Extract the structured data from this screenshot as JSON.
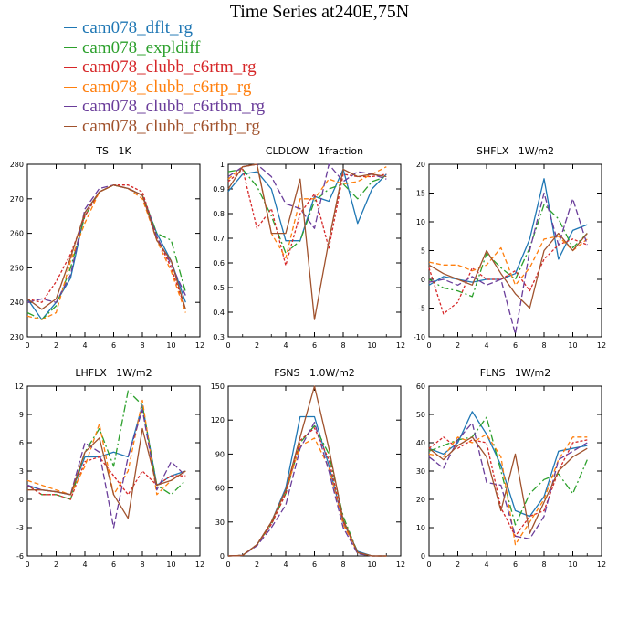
{
  "title": "Time Series at240E,75N",
  "legend": [
    {
      "label": "cam078_dflt_rg",
      "color": "#1f77b4",
      "dash": "none"
    },
    {
      "label": "cam078_expldiff",
      "color": "#2ca02c",
      "dash": "8,3,2,3"
    },
    {
      "label": "cam078_clubb_c6rtm_rg",
      "color": "#d62728",
      "dash": "3,2"
    },
    {
      "label": "cam078_clubb_c6rtp_rg",
      "color": "#ff7f0e",
      "dash": "5,3"
    },
    {
      "label": "cam078_clubb_c6rtbm_rg",
      "color": "#6a3d9a",
      "dash": "7,3"
    },
    {
      "label": "cam078_clubb_c6rtbp_rg",
      "color": "#a0522d",
      "dash": "none"
    }
  ],
  "chart_data": [
    {
      "type": "line",
      "title": "TS   1K",
      "xlim": [
        0,
        12
      ],
      "xticks": [
        0,
        2,
        4,
        6,
        8,
        10,
        12
      ],
      "ylim": [
        230,
        280
      ],
      "yticks": [
        230,
        240,
        250,
        260,
        270,
        280
      ],
      "x": [
        0,
        1,
        2,
        3,
        4,
        5,
        6,
        7,
        8,
        9,
        10,
        11
      ],
      "series": [
        {
          "name": "cam078_dflt_rg",
          "values": [
            241,
            235,
            240,
            247,
            266,
            272,
            274,
            273,
            271,
            260,
            252,
            240
          ]
        },
        {
          "name": "cam078_expldiff",
          "values": [
            237,
            235,
            239,
            250,
            265,
            272,
            274,
            273,
            271,
            260,
            258,
            243
          ]
        },
        {
          "name": "cam078_clubb_c6rtm_rg",
          "values": [
            241,
            240,
            246,
            254,
            265,
            272,
            274,
            274,
            272,
            259,
            250,
            238
          ]
        },
        {
          "name": "cam078_clubb_c6rtp_rg",
          "values": [
            236,
            235,
            237,
            252,
            263,
            272,
            274,
            273,
            270,
            258,
            249,
            237
          ]
        },
        {
          "name": "cam078_clubb_c6rtbm_rg",
          "values": [
            240,
            241,
            240,
            248,
            267,
            273,
            274,
            273,
            271,
            259,
            251,
            242
          ]
        },
        {
          "name": "cam078_clubb_c6rtbp_rg",
          "values": [
            241,
            238,
            241,
            253,
            266,
            272,
            274,
            273,
            271,
            258,
            252,
            238
          ]
        }
      ]
    },
    {
      "type": "line",
      "title": "CLDLOW   1fraction",
      "xlim": [
        0,
        12
      ],
      "xticks": [
        0,
        2,
        4,
        6,
        8,
        10,
        12
      ],
      "ylim": [
        0.3,
        1.0
      ],
      "yticks": [
        0.3,
        0.4,
        0.5,
        0.6,
        0.7,
        0.8,
        0.9,
        1.0
      ],
      "x": [
        0,
        1,
        2,
        3,
        4,
        5,
        6,
        7,
        8,
        9,
        10,
        11
      ],
      "series": [
        {
          "name": "cam078_dflt_rg",
          "values": [
            0.89,
            0.96,
            0.97,
            0.9,
            0.69,
            0.69,
            0.87,
            0.85,
            0.98,
            0.76,
            0.9,
            0.96
          ]
        },
        {
          "name": "cam078_expldiff",
          "values": [
            0.97,
            0.98,
            0.91,
            0.79,
            0.64,
            0.69,
            0.85,
            0.9,
            0.92,
            0.86,
            0.93,
            0.95
          ]
        },
        {
          "name": "cam078_clubb_c6rtm_rg",
          "values": [
            0.93,
            0.98,
            0.74,
            0.82,
            0.59,
            0.8,
            0.88,
            0.66,
            0.96,
            0.95,
            0.95,
            0.96
          ]
        },
        {
          "name": "cam078_clubb_c6rtp_rg",
          "values": [
            0.94,
            0.99,
            1.0,
            0.72,
            0.62,
            0.86,
            0.86,
            0.94,
            0.92,
            0.93,
            0.96,
            0.99
          ]
        },
        {
          "name": "cam078_clubb_c6rtbm_rg",
          "values": [
            0.95,
            0.99,
            1.0,
            0.95,
            0.84,
            0.82,
            0.74,
            1.0,
            0.93,
            0.97,
            0.96,
            0.94
          ]
        },
        {
          "name": "cam078_clubb_c6rtbp_rg",
          "values": [
            0.9,
            0.99,
            1.0,
            0.72,
            0.72,
            0.94,
            0.37,
            0.69,
            0.98,
            0.95,
            0.96,
            0.95
          ]
        }
      ]
    },
    {
      "type": "line",
      "title": "SHFLX   1W/m2",
      "xlim": [
        0,
        12
      ],
      "xticks": [
        0,
        2,
        4,
        6,
        8,
        10,
        12
      ],
      "ylim": [
        -10,
        20
      ],
      "yticks": [
        -10,
        -5,
        0,
        5,
        10,
        15,
        20
      ],
      "x": [
        0,
        1,
        2,
        3,
        4,
        5,
        6,
        7,
        8,
        9,
        10,
        11
      ],
      "series": [
        {
          "name": "cam078_dflt_rg",
          "values": [
            -1,
            0.5,
            0,
            -0.5,
            0,
            0,
            1,
            7,
            17.5,
            3.5,
            8.5,
            9.5
          ]
        },
        {
          "name": "cam078_expldiff",
          "values": [
            0,
            -1.5,
            -2,
            -3,
            4.5,
            2,
            0,
            5.5,
            13,
            10.5,
            5.5,
            8
          ]
        },
        {
          "name": "cam078_clubb_c6rtm_rg",
          "values": [
            2,
            -6,
            -4,
            2,
            0,
            0,
            1.5,
            -2,
            3.5,
            6,
            7,
            6
          ]
        },
        {
          "name": "cam078_clubb_c6rtp_rg",
          "values": [
            3,
            2.5,
            2.5,
            1.5,
            2.5,
            5.5,
            -1,
            2,
            7,
            7.5,
            5,
            7
          ]
        },
        {
          "name": "cam078_clubb_c6rtbm_rg",
          "values": [
            -0.5,
            0,
            -1,
            0.5,
            -1,
            0,
            -9.5,
            5,
            15,
            6,
            14,
            6
          ]
        },
        {
          "name": "cam078_clubb_c6rtbp_rg",
          "values": [
            2.5,
            1,
            0,
            -1,
            5,
            1,
            -2.5,
            -5,
            5,
            8,
            5,
            8
          ]
        }
      ]
    },
    {
      "type": "line",
      "title": "LHFLX   1W/m2",
      "xlim": [
        0,
        12
      ],
      "xticks": [
        0,
        2,
        4,
        6,
        8,
        10,
        12
      ],
      "ylim": [
        -6,
        12
      ],
      "yticks": [
        -6,
        -3,
        0,
        3,
        6,
        9,
        12
      ],
      "x": [
        0,
        1,
        2,
        3,
        4,
        5,
        6,
        7,
        8,
        9,
        10,
        11
      ],
      "series": [
        {
          "name": "cam078_dflt_rg",
          "values": [
            1.5,
            1,
            0.8,
            0.5,
            4.5,
            4.5,
            5,
            4.5,
            10,
            1.5,
            2.5,
            3
          ]
        },
        {
          "name": "cam078_expldiff",
          "values": [
            1.5,
            0.5,
            0.5,
            0,
            5,
            7.5,
            3.5,
            11.5,
            10,
            1.5,
            0.5,
            2
          ]
        },
        {
          "name": "cam078_clubb_c6rtm_rg",
          "values": [
            1.5,
            0.5,
            0.5,
            0,
            4,
            4.5,
            2.5,
            0.5,
            3,
            1.5,
            2.5,
            2.5
          ]
        },
        {
          "name": "cam078_clubb_c6rtp_rg",
          "values": [
            2,
            1.5,
            1,
            0.5,
            3.5,
            8,
            0.5,
            3,
            10.5,
            0.5,
            2,
            3
          ]
        },
        {
          "name": "cam078_clubb_c6rtbm_rg",
          "values": [
            1.5,
            1,
            0.8,
            0.5,
            6,
            5,
            -3,
            4.5,
            9.5,
            1,
            4,
            2.5
          ]
        },
        {
          "name": "cam078_clubb_c6rtbp_rg",
          "values": [
            1,
            1,
            0.8,
            0.5,
            5,
            6.5,
            0.5,
            -2,
            7.5,
            1.5,
            2,
            3
          ]
        }
      ]
    },
    {
      "type": "line",
      "title": "FSNS   1.0W/m2",
      "xlim": [
        0,
        12
      ],
      "xticks": [
        0,
        2,
        4,
        6,
        8,
        10,
        12
      ],
      "ylim": [
        0,
        150
      ],
      "yticks": [
        0,
        30,
        60,
        90,
        120,
        150
      ],
      "x": [
        0,
        1,
        2,
        3,
        4,
        5,
        6,
        7,
        8,
        9,
        10,
        11
      ],
      "series": [
        {
          "name": "cam078_dflt_rg",
          "values": [
            0,
            0.5,
            10,
            30,
            60,
            123,
            123,
            80,
            30,
            4,
            0,
            0
          ]
        },
        {
          "name": "cam078_expldiff",
          "values": [
            0,
            0.5,
            10,
            28,
            55,
            100,
            115,
            90,
            35,
            3,
            0,
            0
          ]
        },
        {
          "name": "cam078_clubb_c6rtm_rg",
          "values": [
            0,
            0.5,
            10,
            28,
            55,
            102,
            113,
            85,
            30,
            3,
            0,
            0
          ]
        },
        {
          "name": "cam078_clubb_c6rtp_rg",
          "values": [
            0,
            0.5,
            10,
            30,
            58,
            97,
            104,
            78,
            28,
            3,
            0,
            0
          ]
        },
        {
          "name": "cam078_clubb_c6rtbm_rg",
          "values": [
            0,
            0.5,
            9,
            25,
            45,
            95,
            118,
            75,
            25,
            2,
            0,
            0
          ]
        },
        {
          "name": "cam078_clubb_c6rtbp_rg",
          "values": [
            0,
            0.5,
            10,
            30,
            58,
            105,
            150,
            95,
            32,
            3,
            0,
            0
          ]
        }
      ]
    },
    {
      "type": "line",
      "title": "FLNS   1W/m2",
      "xlim": [
        0,
        12
      ],
      "xticks": [
        0,
        2,
        4,
        6,
        8,
        10,
        12
      ],
      "ylim": [
        0,
        60
      ],
      "yticks": [
        0,
        10,
        20,
        30,
        40,
        50,
        60
      ],
      "x": [
        0,
        1,
        2,
        3,
        4,
        5,
        6,
        7,
        8,
        9,
        10,
        11
      ],
      "series": [
        {
          "name": "cam078_dflt_rg",
          "values": [
            38,
            36,
            40,
            51,
            43,
            32,
            16,
            14,
            21,
            37,
            38,
            39
          ]
        },
        {
          "name": "cam078_expldiff",
          "values": [
            37,
            39,
            41,
            42,
            49,
            30,
            11,
            22,
            27,
            29,
            22,
            34
          ]
        },
        {
          "name": "cam078_clubb_c6rtm_rg",
          "values": [
            38,
            42,
            38,
            41,
            40,
            17,
            7,
            14,
            16,
            30,
            40,
            41
          ]
        },
        {
          "name": "cam078_clubb_c6rtp_rg",
          "values": [
            36,
            35,
            42,
            40,
            43,
            35,
            4,
            12,
            20,
            34,
            42,
            42
          ]
        },
        {
          "name": "cam078_clubb_c6rtbm_rg",
          "values": [
            35,
            31,
            41,
            47,
            26,
            25,
            7,
            6,
            14,
            34,
            37,
            40
          ]
        },
        {
          "name": "cam078_clubb_c6rtbp_rg",
          "values": [
            38,
            34,
            39,
            42,
            35,
            16,
            36,
            8,
            19,
            30,
            35,
            38
          ]
        }
      ]
    }
  ]
}
